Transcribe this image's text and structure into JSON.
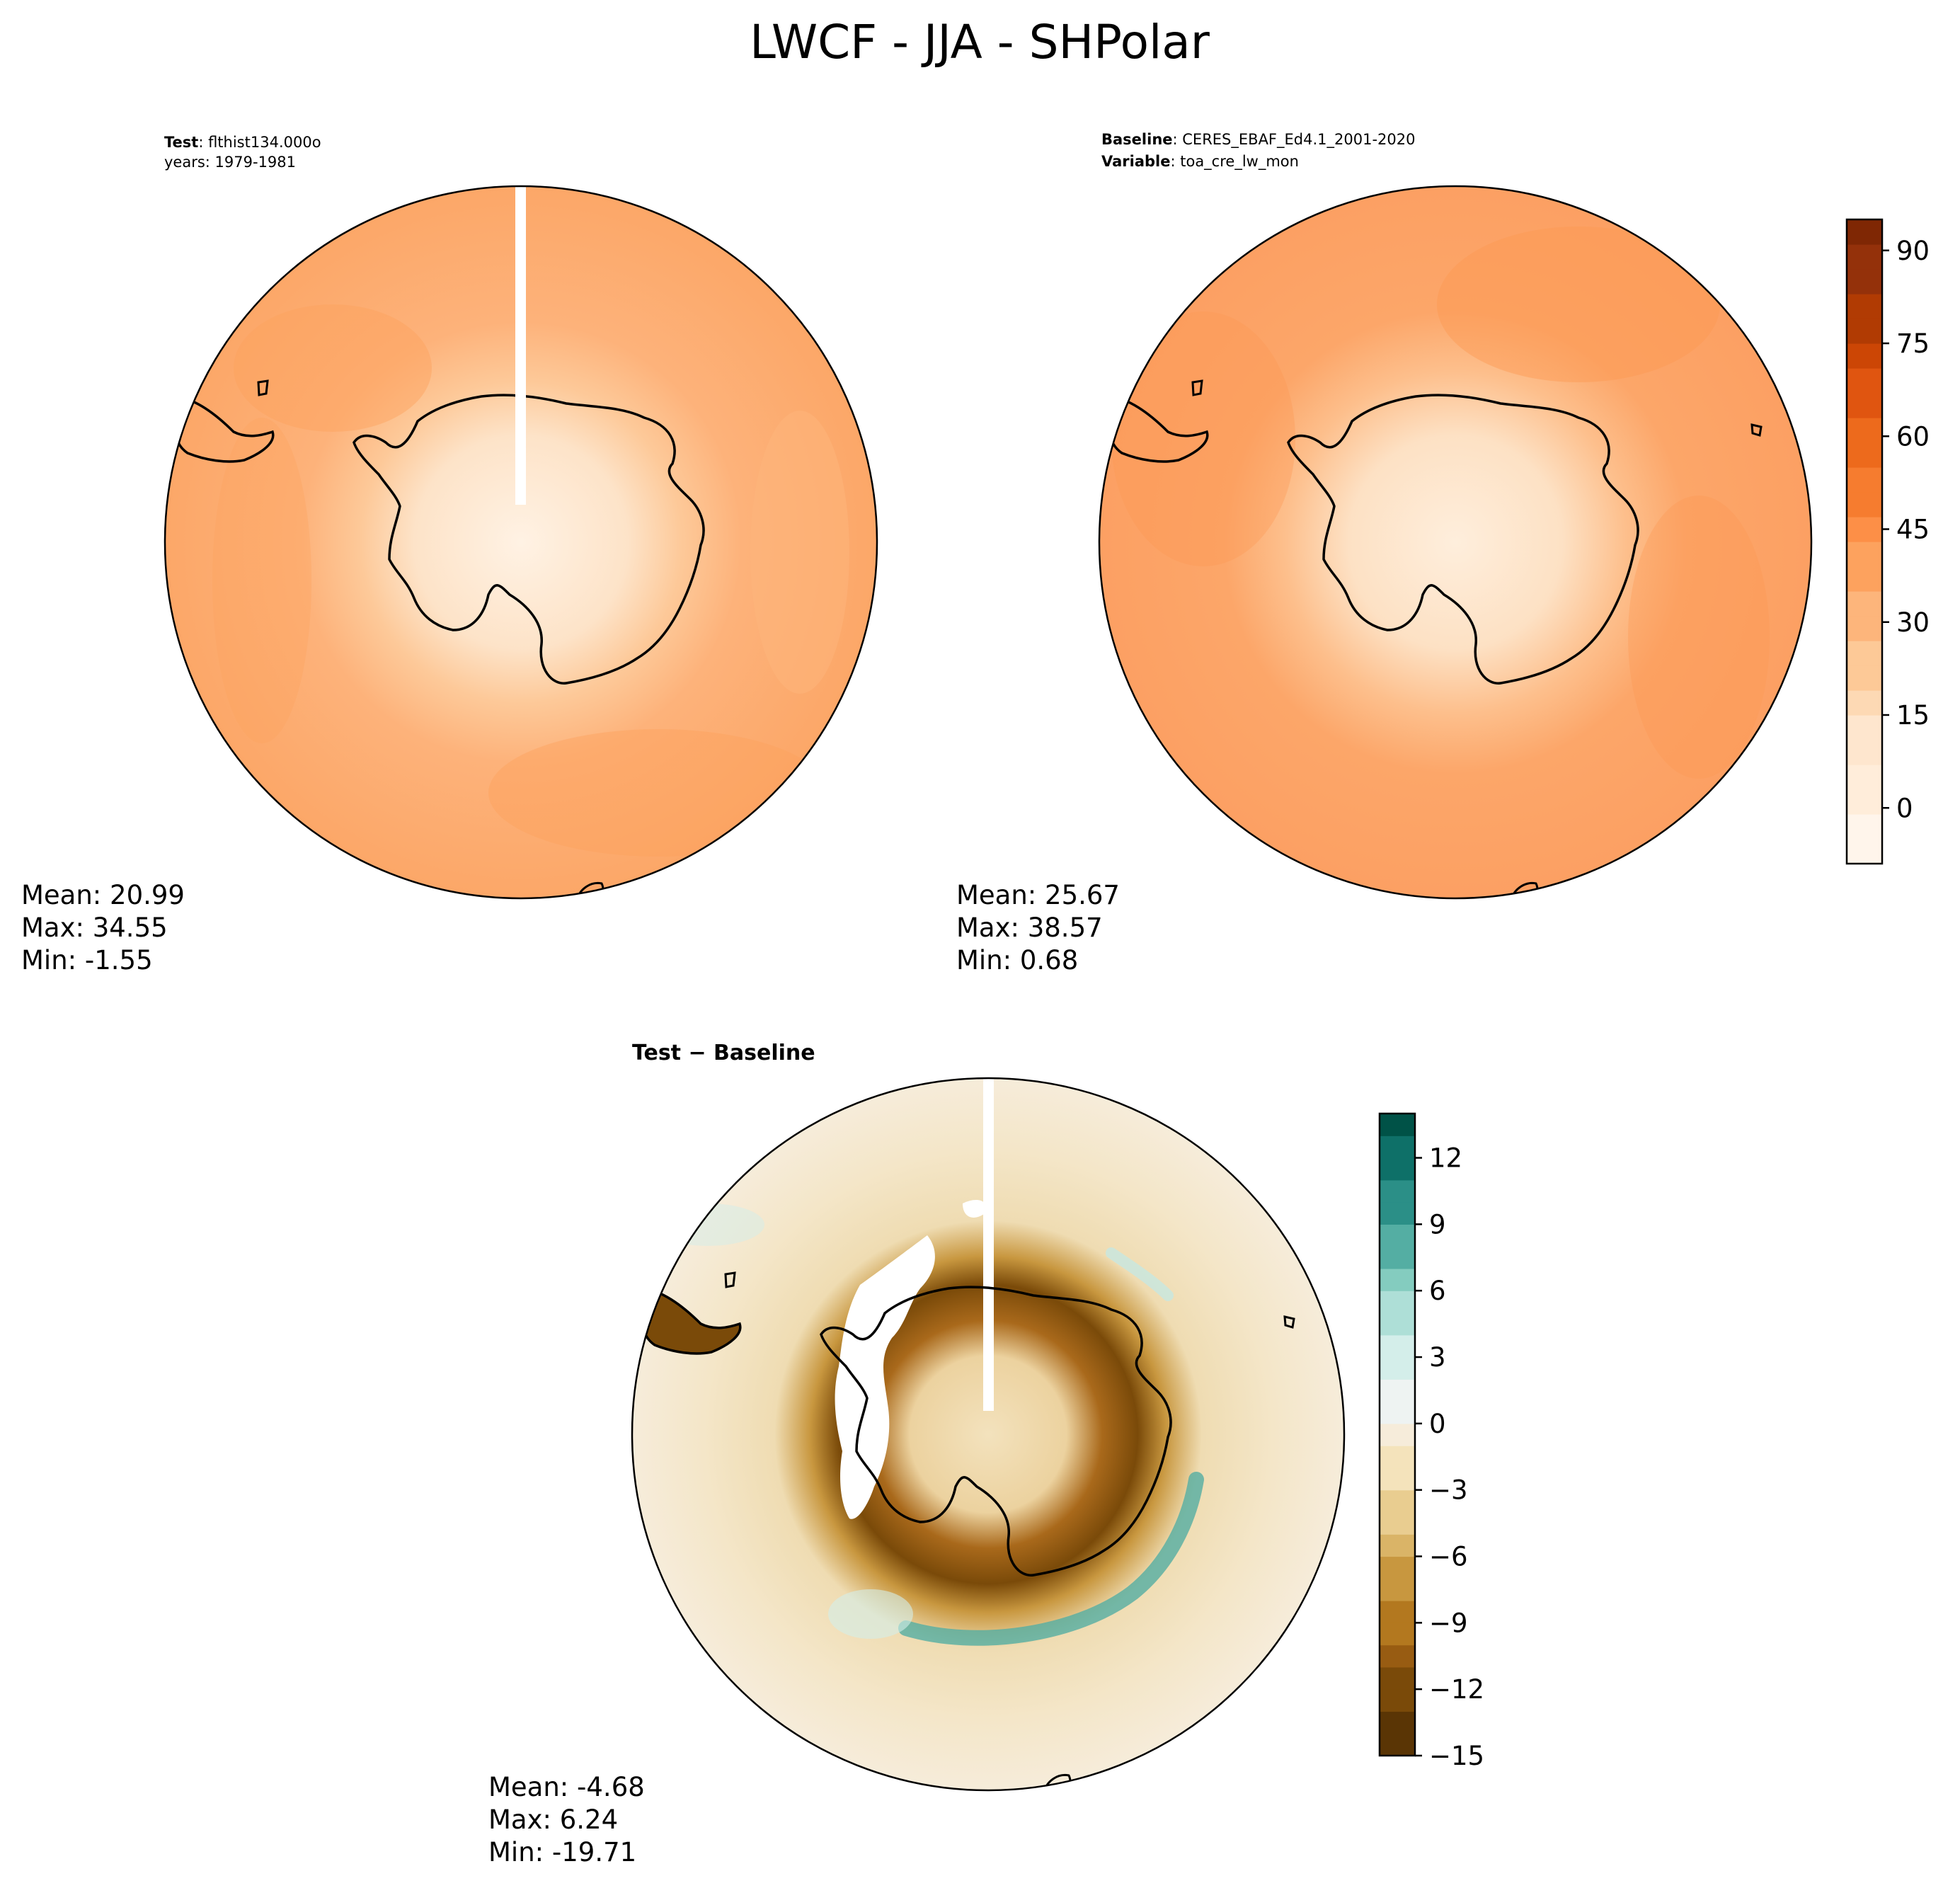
{
  "figure": {
    "title": "LWCF - JJA - SHPolar"
  },
  "colors": {
    "oranges": [
      "#fff5eb",
      "#ffedda",
      "#fee6ce",
      "#fdd9b4",
      "#fdc997",
      "#fdb57b",
      "#fda25e",
      "#fd8f47",
      "#f67c2f",
      "#ed6a1c",
      "#e05510",
      "#cc4605",
      "#b13b03",
      "#94310a",
      "#7f2704"
    ],
    "brbg_neg": [
      "#5a3505",
      "#7a4a09",
      "#985c12",
      "#b3781f",
      "#c8973f",
      "#dab467",
      "#e9cd90",
      "#f4e3bb",
      "#f6ecda"
    ],
    "brbg_pos": [
      "#eef3f2",
      "#d4eeea",
      "#aedfd7",
      "#84ccbf",
      "#54ae a3",
      "#2b8f87",
      "#0e7068",
      "#005247"
    ],
    "land_line": "#000000"
  },
  "panels": {
    "test": {
      "label_bold": "Test",
      "label_rest": ": flthist134.000o",
      "line2": "years: 1979-1981",
      "stats": {
        "mean": "Mean: 20.99",
        "max": "Max: 34.55",
        "min": "Min: -1.55"
      }
    },
    "baseline": {
      "label_bold": "Baseline",
      "label_rest": ": CERES_EBAF_Ed4.1_2001-2020",
      "line2_bold": "Variable",
      "line2_rest": ": toa_cre_lw_mon",
      "stats": {
        "mean": "Mean: 25.67",
        "max": "Max: 38.57",
        "min": "Min:  0.68"
      }
    },
    "diff": {
      "label": "Test − Baseline",
      "stats": {
        "mean": "Mean: -4.68",
        "max": "Max:  6.24",
        "min": "Min: -19.71"
      }
    }
  },
  "chart_data": [
    {
      "type": "heatmap",
      "panel": "test",
      "projection": "south polar stereographic",
      "summary": {
        "mean": 20.99,
        "max": 34.55,
        "min": -1.55
      },
      "colorbar": {
        "shared_with": "baseline"
      }
    },
    {
      "type": "heatmap",
      "panel": "baseline",
      "projection": "south polar stereographic",
      "summary": {
        "mean": 25.67,
        "max": 38.57,
        "min": 0.68
      },
      "colorbar": {
        "range": [
          -9,
          95
        ],
        "ticks": [
          0,
          15,
          30,
          45,
          60,
          75,
          90
        ],
        "tick_labels": [
          "0",
          "15",
          "30",
          "45",
          "60",
          "75",
          "90"
        ]
      }
    },
    {
      "type": "heatmap",
      "panel": "diff",
      "projection": "south polar stereographic",
      "summary": {
        "mean": -4.68,
        "max": 6.24,
        "min": -19.71
      },
      "colorbar": {
        "range": [
          -15,
          14
        ],
        "ticks": [
          -15,
          -12,
          -9,
          -6,
          -3,
          0,
          3,
          6,
          9,
          12
        ],
        "tick_labels": [
          "−15",
          "−12",
          "−9",
          "−6",
          "−3",
          "0",
          "3",
          "6",
          "9",
          "12"
        ]
      }
    }
  ]
}
